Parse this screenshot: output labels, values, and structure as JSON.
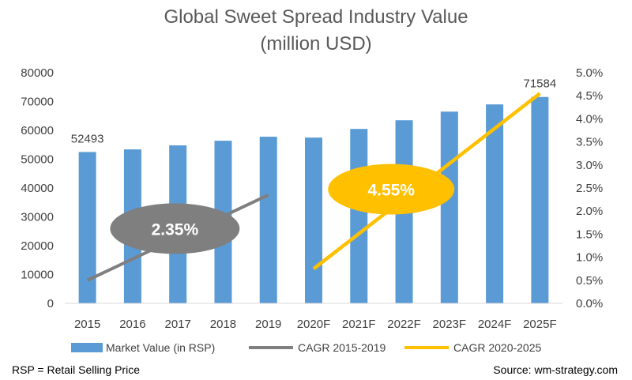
{
  "title_line1": "Global Sweet Spread Industry Value",
  "title_line2": "(million USD)",
  "footer": {
    "note": "RSP = Retail Selling Price",
    "source": "Source: wm-strategy.com"
  },
  "chart_data": {
    "type": "bar",
    "categories": [
      "2015",
      "2016",
      "2017",
      "2018",
      "2019",
      "2020F",
      "2021F",
      "2022F",
      "2023F",
      "2024F",
      "2025F"
    ],
    "series": [
      {
        "name": "Market Value (in RSP)",
        "type": "bar",
        "axis": "left",
        "color": "#5B9BD5",
        "values": [
          52493,
          53400,
          54800,
          56400,
          57800,
          57500,
          60500,
          63500,
          66500,
          69000,
          71584
        ]
      },
      {
        "name": "CAGR 2015-2019",
        "type": "line",
        "axis": "right",
        "color": "#7F7F7F",
        "x": [
          "2015",
          "2019"
        ],
        "values": [
          0.5,
          2.35
        ]
      },
      {
        "name": "CAGR 2020-2025",
        "type": "line",
        "axis": "right",
        "color": "#FFC000",
        "x": [
          "2020F",
          "2025F"
        ],
        "values": [
          0.75,
          4.55
        ]
      }
    ],
    "data_labels": [
      {
        "category": "2015",
        "text": "52493"
      },
      {
        "category": "2025F",
        "text": "71584"
      }
    ],
    "callouts": [
      {
        "text": "2.35%",
        "color": "#7F7F7F"
      },
      {
        "text": "4.55%",
        "color": "#FFC000"
      }
    ],
    "y_left": {
      "ticks": [
        "0",
        "10000",
        "20000",
        "30000",
        "40000",
        "50000",
        "60000",
        "70000",
        "80000"
      ],
      "ylim": [
        0,
        80000
      ]
    },
    "y_right": {
      "ticks": [
        "0.0%",
        "0.5%",
        "1.0%",
        "1.5%",
        "2.0%",
        "2.5%",
        "3.0%",
        "3.5%",
        "4.0%",
        "4.5%",
        "5.0%"
      ],
      "ylim": [
        0,
        5
      ]
    },
    "grid": false,
    "legend_position": "bottom"
  }
}
